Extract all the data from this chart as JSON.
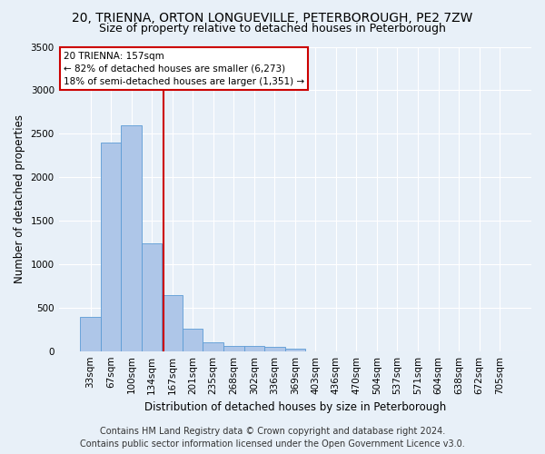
{
  "title_line1": "20, TRIENNA, ORTON LONGUEVILLE, PETERBOROUGH, PE2 7ZW",
  "title_line2": "Size of property relative to detached houses in Peterborough",
  "xlabel": "Distribution of detached houses by size in Peterborough",
  "ylabel": "Number of detached properties",
  "categories": [
    "33sqm",
    "67sqm",
    "100sqm",
    "134sqm",
    "167sqm",
    "201sqm",
    "235sqm",
    "268sqm",
    "302sqm",
    "336sqm",
    "369sqm",
    "403sqm",
    "436sqm",
    "470sqm",
    "504sqm",
    "537sqm",
    "571sqm",
    "604sqm",
    "638sqm",
    "672sqm",
    "705sqm"
  ],
  "values": [
    390,
    2400,
    2600,
    1240,
    640,
    260,
    100,
    60,
    60,
    45,
    30,
    0,
    0,
    0,
    0,
    0,
    0,
    0,
    0,
    0,
    0
  ],
  "bar_color": "#aec6e8",
  "bar_edge_color": "#5b9bd5",
  "vline_color": "#cc0000",
  "vline_pos": 3.57,
  "annotation_text": "20 TRIENNA: 157sqm\n← 82% of detached houses are smaller (6,273)\n18% of semi-detached houses are larger (1,351) →",
  "annotation_box_color": "#ffffff",
  "annotation_box_edge": "#cc0000",
  "ylim": [
    0,
    3500
  ],
  "yticks": [
    0,
    500,
    1000,
    1500,
    2000,
    2500,
    3000,
    3500
  ],
  "background_color": "#e8f0f8",
  "plot_bg_color": "#e8f0f8",
  "footer_line1": "Contains HM Land Registry data © Crown copyright and database right 2024.",
  "footer_line2": "Contains public sector information licensed under the Open Government Licence v3.0.",
  "title_fontsize": 10,
  "subtitle_fontsize": 9,
  "label_fontsize": 8.5,
  "tick_fontsize": 7.5,
  "footer_fontsize": 7
}
